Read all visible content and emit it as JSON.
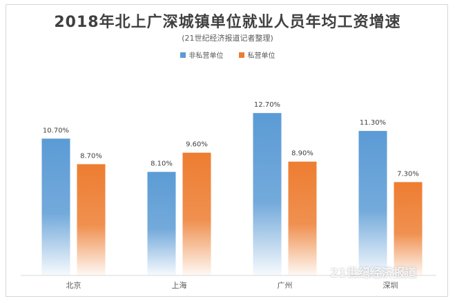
{
  "chart_data": {
    "type": "bar",
    "title": "2018年北上广深城镇单位就业人员年均工资增速",
    "subtitle": "(21世纪经济报道记者整理)",
    "categories": [
      "北京",
      "上海",
      "广州",
      "深圳"
    ],
    "series": [
      {
        "name": "非私营单位",
        "values": [
          10.7,
          8.1,
          12.7,
          11.3
        ],
        "labels": [
          "10.70%",
          "8.10%",
          "12.70%",
          "11.30%"
        ],
        "color": "#5b9bd5"
      },
      {
        "name": "私营单位",
        "values": [
          8.7,
          9.6,
          8.9,
          7.3
        ],
        "labels": [
          "8.70%",
          "9.60%",
          "8.90%",
          "7.30%"
        ],
        "color": "#ed7d31"
      }
    ],
    "ylim": [
      0,
      14
    ],
    "grid": false,
    "legend": "top-center"
  },
  "watermark": "21世纪经济报道"
}
